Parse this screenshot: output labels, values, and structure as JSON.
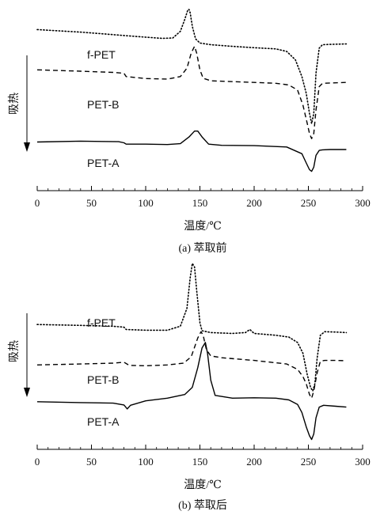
{
  "chart_data": [
    {
      "type": "line",
      "caption": "(a) 萃取前",
      "xlabel": "温度/℃",
      "ylabel": "吸热",
      "xlim": [
        0,
        300
      ],
      "xticks": [
        0,
        50,
        100,
        150,
        200,
        250,
        300
      ],
      "series": [
        {
          "name": "f-PET",
          "style": "dotted",
          "x": [
            0,
            40,
            60,
            80,
            100,
            115,
            125,
            132,
            136,
            139,
            140,
            141,
            143,
            146,
            150,
            160,
            180,
            200,
            220,
            230,
            238,
            244,
            248,
            251,
            253,
            255,
            257,
            260,
            263,
            270,
            285
          ],
          "y": [
            0.88,
            0.865,
            0.855,
            0.845,
            0.835,
            0.828,
            0.83,
            0.87,
            0.94,
            1.0,
            1.0,
            0.98,
            0.9,
            0.825,
            0.8,
            0.79,
            0.78,
            0.772,
            0.765,
            0.75,
            0.7,
            0.6,
            0.5,
            0.38,
            0.32,
            0.38,
            0.62,
            0.77,
            0.79,
            0.792,
            0.795
          ]
        },
        {
          "name": "PET-B",
          "style": "dashed",
          "x": [
            0,
            40,
            70,
            80,
            82,
            100,
            120,
            132,
            138,
            142,
            145,
            147,
            150,
            153,
            160,
            180,
            200,
            220,
            232,
            240,
            245,
            249,
            251,
            253,
            255,
            257,
            260,
            263,
            270,
            285
          ],
          "y": [
            0.64,
            0.632,
            0.625,
            0.62,
            0.6,
            0.588,
            0.585,
            0.6,
            0.65,
            0.74,
            0.78,
            0.74,
            0.64,
            0.59,
            0.575,
            0.57,
            0.565,
            0.56,
            0.55,
            0.52,
            0.43,
            0.32,
            0.26,
            0.23,
            0.26,
            0.4,
            0.54,
            0.56,
            0.562,
            0.565
          ]
        },
        {
          "name": "PET-A",
          "style": "solid",
          "x": [
            0,
            40,
            75,
            80,
            82,
            100,
            120,
            132,
            140,
            145,
            148,
            152,
            158,
            170,
            200,
            230,
            244,
            248,
            251,
            253,
            255,
            257,
            260,
            263,
            270,
            285
          ],
          "y": [
            0.21,
            0.215,
            0.212,
            0.205,
            0.197,
            0.197,
            0.195,
            0.2,
            0.24,
            0.275,
            0.275,
            0.24,
            0.197,
            0.19,
            0.188,
            0.18,
            0.14,
            0.085,
            0.045,
            0.035,
            0.06,
            0.13,
            0.16,
            0.163,
            0.165,
            0.165
          ]
        }
      ]
    },
    {
      "type": "line",
      "caption": "(b) 萃取后",
      "xlabel": "温度/℃",
      "ylabel": "吸热",
      "xlim": [
        0,
        300
      ],
      "xticks": [
        0,
        50,
        100,
        150,
        200,
        250,
        300
      ],
      "series": [
        {
          "name": "f-PET",
          "style": "dotted",
          "x": [
            0,
            40,
            70,
            80,
            82,
            100,
            120,
            132,
            138,
            141,
            143,
            145,
            147,
            150,
            152,
            160,
            180,
            192,
            196,
            200,
            220,
            232,
            240,
            245,
            249,
            252,
            254,
            256,
            258,
            261,
            265,
            275,
            285
          ],
          "y": [
            0.66,
            0.655,
            0.65,
            0.645,
            0.632,
            0.628,
            0.628,
            0.65,
            0.75,
            0.92,
            1.0,
            0.98,
            0.85,
            0.67,
            0.625,
            0.615,
            0.61,
            0.615,
            0.632,
            0.61,
            0.6,
            0.59,
            0.56,
            0.5,
            0.38,
            0.31,
            0.29,
            0.33,
            0.47,
            0.6,
            0.62,
            0.618,
            0.615
          ]
        },
        {
          "name": "PET-B",
          "style": "dashed",
          "x": [
            0,
            40,
            70,
            80,
            85,
            100,
            120,
            135,
            142,
            148,
            151,
            153,
            156,
            160,
            170,
            200,
            230,
            240,
            245,
            248,
            251,
            253,
            255,
            258,
            261,
            265,
            275,
            285
          ],
          "y": [
            0.435,
            0.44,
            0.445,
            0.45,
            0.432,
            0.43,
            0.435,
            0.445,
            0.48,
            0.585,
            0.62,
            0.6,
            0.52,
            0.485,
            0.475,
            0.46,
            0.44,
            0.41,
            0.37,
            0.33,
            0.27,
            0.25,
            0.29,
            0.39,
            0.455,
            0.46,
            0.46,
            0.458
          ]
        },
        {
          "name": "PET-A",
          "style": "solid",
          "x": [
            0,
            40,
            70,
            80,
            83,
            86,
            100,
            120,
            136,
            143,
            148,
            152,
            155,
            157,
            160,
            164,
            180,
            200,
            220,
            232,
            240,
            244,
            248,
            251,
            253,
            255,
            257,
            260,
            264,
            275,
            285
          ],
          "y": [
            0.23,
            0.225,
            0.222,
            0.212,
            0.19,
            0.21,
            0.235,
            0.25,
            0.27,
            0.31,
            0.42,
            0.53,
            0.56,
            0.5,
            0.35,
            0.265,
            0.25,
            0.252,
            0.25,
            0.24,
            0.215,
            0.17,
            0.09,
            0.04,
            0.02,
            0.05,
            0.14,
            0.2,
            0.21,
            0.205,
            0.2
          ]
        }
      ]
    }
  ]
}
